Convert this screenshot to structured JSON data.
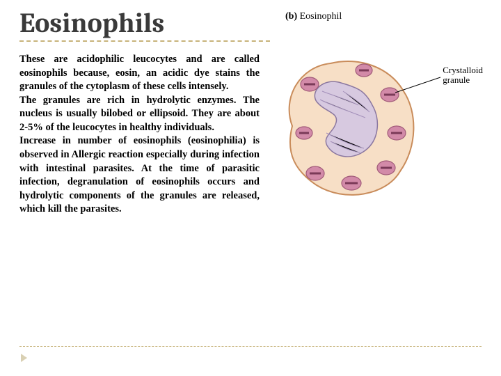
{
  "title": "Eosinophils",
  "body_text": "These are acidophilic leucocytes and are called eosinophils because, eosin, an acidic dye stains the granules of the cytoplasm of these cells intensely.\nThe granules are rich in hydrolytic enzymes. The nucleus is usually bilobed or ellipsoid. They are about 2-5% of the leucocytes in healthy individuals.\nIncrease in number of eosinophils (eosinophilia) is observed in Allergic reaction especially during infection with intestinal parasites. At the time of parasitic infection, degranulation of eosinophils occurs and hydrolytic components of the granules are released, which kill the parasites.",
  "figure": {
    "caption_prefix": "(b)",
    "caption_label": "Eosinophil",
    "annotation": "Crystalloid\ngranule",
    "colors": {
      "cell_border": "#c98c5b",
      "cytoplasm": "#f7dfc6",
      "nucleus_fill": "#d7c9e0",
      "nucleus_stroke": "#8a77a0",
      "nucleus_hatch": "#a38fba",
      "granule_fill": "#d28aa8",
      "granule_stroke": "#a05a78",
      "granule_core": "#7a3a58",
      "leader_line": "#000000"
    }
  },
  "theme": {
    "accent_dash": "#c7b37a",
    "title_color": "#3a3a3a",
    "background": "#ffffff"
  }
}
